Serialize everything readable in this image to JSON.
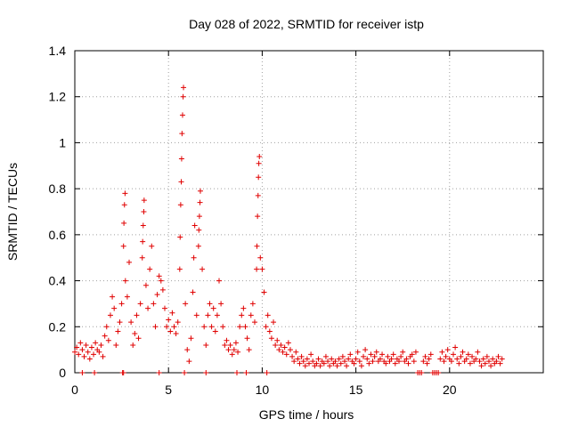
{
  "chart_data": {
    "type": "scatter",
    "title": "Day 028 of 2022, SRMTID for receiver istp",
    "xlabel": "GPS time / hours",
    "ylabel": "SRMTID / TECUs",
    "xlim": [
      0,
      25
    ],
    "ylim": [
      0,
      1.4
    ],
    "xticks": [
      0,
      5,
      10,
      15,
      20
    ],
    "xtick_labels": [
      "0",
      "5",
      "10",
      "15",
      "20"
    ],
    "yticks": [
      0,
      0.2,
      0.4,
      0.6,
      0.8,
      1,
      1.2,
      1.4
    ],
    "ytick_labels": [
      "0",
      "0.2",
      "0.4",
      "0.6",
      "0.8",
      "1",
      "1.2",
      "1.4"
    ],
    "grid": true,
    "marker": "plus",
    "color": "#e00000",
    "series": [
      {
        "name": "SRMTID",
        "points": [
          [
            0.0,
            0.09
          ],
          [
            0.1,
            0.11
          ],
          [
            0.2,
            0.08
          ],
          [
            0.3,
            0.13
          ],
          [
            0.4,
            0.1
          ],
          [
            0.5,
            0.07
          ],
          [
            0.6,
            0.12
          ],
          [
            0.7,
            0.09
          ],
          [
            0.8,
            0.06
          ],
          [
            0.9,
            0.11
          ],
          [
            1.0,
            0.08
          ],
          [
            1.1,
            0.13
          ],
          [
            1.2,
            0.1
          ],
          [
            1.3,
            0.09
          ],
          [
            1.4,
            0.12
          ],
          [
            1.5,
            0.07
          ],
          [
            1.6,
            0.16
          ],
          [
            1.7,
            0.2
          ],
          [
            1.8,
            0.14
          ],
          [
            1.9,
            0.25
          ],
          [
            2.0,
            0.33
          ],
          [
            2.1,
            0.28
          ],
          [
            2.2,
            0.12
          ],
          [
            2.3,
            0.18
          ],
          [
            2.4,
            0.22
          ],
          [
            2.5,
            0.3
          ],
          [
            2.6,
            0.55
          ],
          [
            2.62,
            0.65
          ],
          [
            2.65,
            0.73
          ],
          [
            2.68,
            0.78
          ],
          [
            2.7,
            0.4
          ],
          [
            2.8,
            0.33
          ],
          [
            2.9,
            0.48
          ],
          [
            3.0,
            0.22
          ],
          [
            3.1,
            0.12
          ],
          [
            3.2,
            0.17
          ],
          [
            3.3,
            0.25
          ],
          [
            3.4,
            0.15
          ],
          [
            3.5,
            0.3
          ],
          [
            3.6,
            0.5
          ],
          [
            3.62,
            0.57
          ],
          [
            3.65,
            0.64
          ],
          [
            3.68,
            0.7
          ],
          [
            3.7,
            0.75
          ],
          [
            3.8,
            0.38
          ],
          [
            3.9,
            0.28
          ],
          [
            4.0,
            0.45
          ],
          [
            4.1,
            0.55
          ],
          [
            4.2,
            0.3
          ],
          [
            4.3,
            0.2
          ],
          [
            4.4,
            0.34
          ],
          [
            4.5,
            0.42
          ],
          [
            4.6,
            0.4
          ],
          [
            4.7,
            0.36
          ],
          [
            4.8,
            0.28
          ],
          [
            4.9,
            0.2
          ],
          [
            5.0,
            0.23
          ],
          [
            5.1,
            0.18
          ],
          [
            5.2,
            0.26
          ],
          [
            5.3,
            0.2
          ],
          [
            5.4,
            0.17
          ],
          [
            5.5,
            0.22
          ],
          [
            5.6,
            0.45
          ],
          [
            5.62,
            0.59
          ],
          [
            5.65,
            0.73
          ],
          [
            5.68,
            0.83
          ],
          [
            5.7,
            0.93
          ],
          [
            5.72,
            1.04
          ],
          [
            5.75,
            1.12
          ],
          [
            5.78,
            1.2
          ],
          [
            5.8,
            1.24
          ],
          [
            5.9,
            0.3
          ],
          [
            6.0,
            0.1
          ],
          [
            6.1,
            0.05
          ],
          [
            6.2,
            0.15
          ],
          [
            6.3,
            0.35
          ],
          [
            6.35,
            0.5
          ],
          [
            6.4,
            0.64
          ],
          [
            6.5,
            0.25
          ],
          [
            6.6,
            0.55
          ],
          [
            6.62,
            0.62
          ],
          [
            6.65,
            0.68
          ],
          [
            6.68,
            0.74
          ],
          [
            6.7,
            0.79
          ],
          [
            6.8,
            0.45
          ],
          [
            6.9,
            0.2
          ],
          [
            7.0,
            0.12
          ],
          [
            7.1,
            0.25
          ],
          [
            7.2,
            0.3
          ],
          [
            7.3,
            0.2
          ],
          [
            7.4,
            0.28
          ],
          [
            7.5,
            0.18
          ],
          [
            7.6,
            0.25
          ],
          [
            7.7,
            0.4
          ],
          [
            7.8,
            0.3
          ],
          [
            7.9,
            0.2
          ],
          [
            8.0,
            0.12
          ],
          [
            8.1,
            0.14
          ],
          [
            8.2,
            0.1
          ],
          [
            8.3,
            0.12
          ],
          [
            8.4,
            0.08
          ],
          [
            8.5,
            0.1
          ],
          [
            8.6,
            0.13
          ],
          [
            8.7,
            0.09
          ],
          [
            8.8,
            0.2
          ],
          [
            8.9,
            0.25
          ],
          [
            9.0,
            0.28
          ],
          [
            9.1,
            0.2
          ],
          [
            9.2,
            0.15
          ],
          [
            9.3,
            0.1
          ],
          [
            9.4,
            0.25
          ],
          [
            9.5,
            0.3
          ],
          [
            9.6,
            0.22
          ],
          [
            9.7,
            0.45
          ],
          [
            9.72,
            0.55
          ],
          [
            9.75,
            0.68
          ],
          [
            9.78,
            0.77
          ],
          [
            9.8,
            0.85
          ],
          [
            9.82,
            0.91
          ],
          [
            9.85,
            0.94
          ],
          [
            9.9,
            0.5
          ],
          [
            10.0,
            0.45
          ],
          [
            10.1,
            0.35
          ],
          [
            10.2,
            0.2
          ],
          [
            10.3,
            0.25
          ],
          [
            10.4,
            0.18
          ],
          [
            10.5,
            0.15
          ],
          [
            10.6,
            0.22
          ],
          [
            10.7,
            0.12
          ],
          [
            10.8,
            0.14
          ],
          [
            10.9,
            0.1
          ],
          [
            11.0,
            0.12
          ],
          [
            11.1,
            0.09
          ],
          [
            11.2,
            0.11
          ],
          [
            11.3,
            0.08
          ],
          [
            11.4,
            0.13
          ],
          [
            11.5,
            0.1
          ],
          [
            11.6,
            0.07
          ],
          [
            11.7,
            0.05
          ],
          [
            11.8,
            0.09
          ],
          [
            11.9,
            0.06
          ],
          [
            12.0,
            0.04
          ],
          [
            12.1,
            0.07
          ],
          [
            12.2,
            0.05
          ],
          [
            12.3,
            0.03
          ],
          [
            12.4,
            0.06
          ],
          [
            12.5,
            0.04
          ],
          [
            12.6,
            0.08
          ],
          [
            12.7,
            0.05
          ],
          [
            12.8,
            0.03
          ],
          [
            12.9,
            0.04
          ],
          [
            13.0,
            0.06
          ],
          [
            13.1,
            0.03
          ],
          [
            13.2,
            0.05
          ],
          [
            13.3,
            0.04
          ],
          [
            13.4,
            0.07
          ],
          [
            13.5,
            0.05
          ],
          [
            13.6,
            0.03
          ],
          [
            13.7,
            0.06
          ],
          [
            13.8,
            0.04
          ],
          [
            13.9,
            0.05
          ],
          [
            14.0,
            0.03
          ],
          [
            14.1,
            0.06
          ],
          [
            14.2,
            0.04
          ],
          [
            14.3,
            0.07
          ],
          [
            14.4,
            0.05
          ],
          [
            14.5,
            0.03
          ],
          [
            14.6,
            0.06
          ],
          [
            14.7,
            0.08
          ],
          [
            14.8,
            0.05
          ],
          [
            14.9,
            0.04
          ],
          [
            15.0,
            0.06
          ],
          [
            15.1,
            0.09
          ],
          [
            15.2,
            0.05
          ],
          [
            15.3,
            0.03
          ],
          [
            15.4,
            0.07
          ],
          [
            15.5,
            0.1
          ],
          [
            15.6,
            0.06
          ],
          [
            15.7,
            0.04
          ],
          [
            15.8,
            0.08
          ],
          [
            15.9,
            0.05
          ],
          [
            16.0,
            0.07
          ],
          [
            16.1,
            0.09
          ],
          [
            16.2,
            0.05
          ],
          [
            16.3,
            0.06
          ],
          [
            16.4,
            0.08
          ],
          [
            16.5,
            0.05
          ],
          [
            16.6,
            0.04
          ],
          [
            16.7,
            0.07
          ],
          [
            16.8,
            0.05
          ],
          [
            16.9,
            0.06
          ],
          [
            17.0,
            0.08
          ],
          [
            17.1,
            0.04
          ],
          [
            17.2,
            0.06
          ],
          [
            17.3,
            0.05
          ],
          [
            17.4,
            0.07
          ],
          [
            17.5,
            0.09
          ],
          [
            17.6,
            0.05
          ],
          [
            17.7,
            0.06
          ],
          [
            17.8,
            0.04
          ],
          [
            17.9,
            0.07
          ],
          [
            18.0,
            0.08
          ],
          [
            18.1,
            0.05
          ],
          [
            18.2,
            0.09
          ],
          [
            18.3,
            0.0
          ],
          [
            18.4,
            0.0
          ],
          [
            18.5,
            0.0
          ],
          [
            18.6,
            0.05
          ],
          [
            18.7,
            0.07
          ],
          [
            18.8,
            0.04
          ],
          [
            18.9,
            0.06
          ],
          [
            19.0,
            0.08
          ],
          [
            19.1,
            0.0
          ],
          [
            19.2,
            0.0
          ],
          [
            19.3,
            0.0
          ],
          [
            19.4,
            0.0
          ],
          [
            19.5,
            0.06
          ],
          [
            19.6,
            0.09
          ],
          [
            19.7,
            0.05
          ],
          [
            19.8,
            0.07
          ],
          [
            19.9,
            0.1
          ],
          [
            20.0,
            0.06
          ],
          [
            20.1,
            0.05
          ],
          [
            20.2,
            0.08
          ],
          [
            20.3,
            0.11
          ],
          [
            20.4,
            0.06
          ],
          [
            20.5,
            0.04
          ],
          [
            20.6,
            0.07
          ],
          [
            20.7,
            0.09
          ],
          [
            20.8,
            0.05
          ],
          [
            20.9,
            0.06
          ],
          [
            21.0,
            0.08
          ],
          [
            21.1,
            0.04
          ],
          [
            21.2,
            0.07
          ],
          [
            21.3,
            0.05
          ],
          [
            21.4,
            0.06
          ],
          [
            21.5,
            0.09
          ],
          [
            21.6,
            0.05
          ],
          [
            21.7,
            0.03
          ],
          [
            21.8,
            0.06
          ],
          [
            21.9,
            0.04
          ],
          [
            22.0,
            0.07
          ],
          [
            22.1,
            0.05
          ],
          [
            22.2,
            0.03
          ],
          [
            22.3,
            0.06
          ],
          [
            22.4,
            0.04
          ],
          [
            22.5,
            0.05
          ],
          [
            22.6,
            0.07
          ],
          [
            22.7,
            0.04
          ],
          [
            22.8,
            0.06
          ],
          [
            2.55,
            0.0
          ],
          [
            2.6,
            0.0
          ],
          [
            5.85,
            0.0
          ],
          [
            7.0,
            0.0
          ],
          [
            0.4,
            0.0
          ],
          [
            1.05,
            0.0
          ],
          [
            4.5,
            0.0
          ],
          [
            8.65,
            0.0
          ],
          [
            9.15,
            0.0
          ],
          [
            10.25,
            0.0
          ]
        ]
      }
    ]
  }
}
